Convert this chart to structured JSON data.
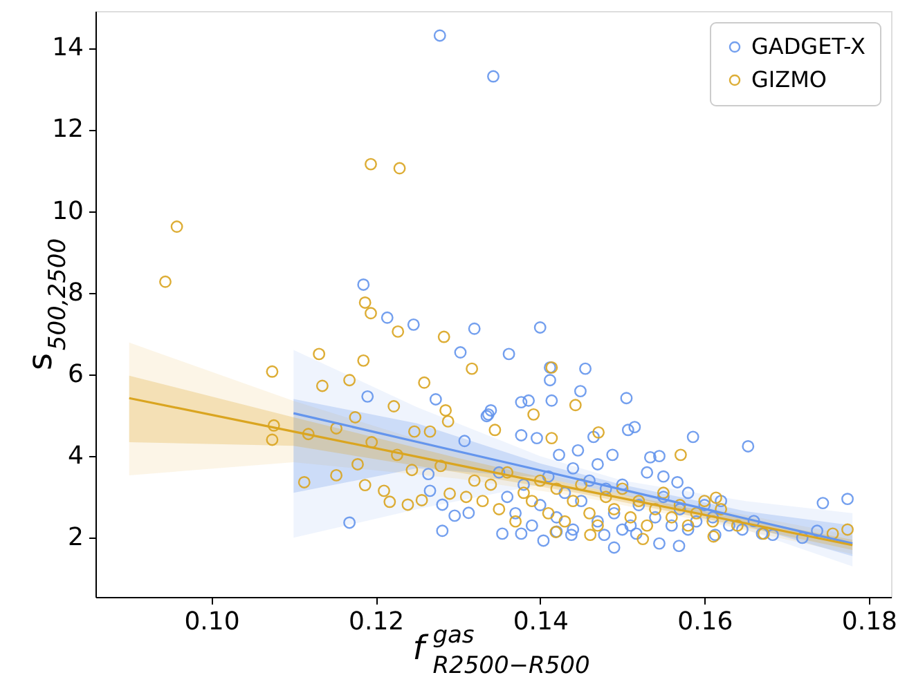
{
  "chart_data": {
    "type": "scatter",
    "xlabel": "f$^{gas}$$_{R2500−R500}$",
    "ylabel": "s$_{500,2500}$",
    "xlim": [
      0.0859,
      0.1827
    ],
    "ylim": [
      0.55,
      14.9
    ],
    "xticks": [
      {
        "value": 0.1,
        "label": "0.10"
      },
      {
        "value": 0.12,
        "label": "0.12"
      },
      {
        "value": 0.14,
        "label": "0.14"
      },
      {
        "value": 0.16,
        "label": "0.16"
      },
      {
        "value": 0.18,
        "label": "0.18"
      }
    ],
    "yticks": [
      2,
      4,
      6,
      8,
      10,
      12,
      14
    ],
    "grid": false,
    "legend": "top right",
    "marker": "circle",
    "series": [
      {
        "type": "line",
        "marker": "none",
        "color": "#a9c1f3",
        "x": [
          0.11,
          0.125,
          0.14,
          0.15,
          0.165,
          0.178
        ],
        "values": [
          null,
          null,
          null,
          null,
          null,
          null
        ],
        "lower": [
          2.0,
          2.7,
          3.3,
          2.95,
          2.2,
          1.3
        ],
        "upper": [
          6.6,
          5.2,
          4.0,
          3.4,
          2.9,
          2.6
        ]
      },
      {
        "type": "line",
        "marker": "none",
        "color": "#ecc97c",
        "x": [
          0.09,
          0.11,
          0.13,
          0.145,
          0.16,
          0.178
        ],
        "values": [
          null,
          null,
          null,
          null,
          null,
          null
        ],
        "lower": [
          3.53,
          3.85,
          3.45,
          3.0,
          2.4,
          1.6
        ],
        "upper": [
          6.78,
          5.35,
          4.1,
          3.35,
          2.75,
          2.05
        ]
      },
      {
        "type": "scatter",
        "name": "GADGET-X",
        "color": "#6495ed",
        "x": [
          0.1278,
          0.1343,
          0.1185,
          0.1214,
          0.1246,
          0.132,
          0.14,
          0.1303,
          0.1362,
          0.1412,
          0.1412,
          0.1455,
          0.1449,
          0.1505,
          0.1377,
          0.1386,
          0.1414,
          0.1337,
          0.1507,
          0.1515,
          0.1586,
          0.1653,
          0.1744,
          0.1774,
          0.1377,
          0.1396,
          0.1465,
          0.1423,
          0.1446,
          0.1488,
          0.1534,
          0.1545,
          0.1567,
          0.149,
          0.1545,
          0.1569,
          0.1404,
          0.1646,
          0.167,
          0.1683,
          0.1719,
          0.1737,
          0.166,
          0.1354,
          0.1377,
          0.1438,
          0.1478,
          0.1517,
          0.1613,
          0.119,
          0.1273,
          0.1264,
          0.1266,
          0.1281,
          0.1296,
          0.1313,
          0.1281,
          0.1168,
          0.1308,
          0.134,
          0.1335,
          0.136,
          0.137,
          0.138,
          0.139,
          0.14,
          0.141,
          0.142,
          0.143,
          0.144,
          0.145,
          0.146,
          0.147,
          0.148,
          0.149,
          0.15,
          0.151,
          0.152,
          0.153,
          0.154,
          0.155,
          0.156,
          0.157,
          0.158,
          0.159,
          0.16,
          0.161,
          0.162,
          0.163,
          0.135,
          0.144,
          0.15,
          0.147,
          0.155,
          0.142,
          0.158
        ],
        "values": [
          14.3,
          13.3,
          8.2,
          7.39,
          7.22,
          7.12,
          7.15,
          6.54,
          6.5,
          5.86,
          6.17,
          6.14,
          5.59,
          5.42,
          5.32,
          5.36,
          5.36,
          5.02,
          4.64,
          4.71,
          4.47,
          4.24,
          2.85,
          2.95,
          4.51,
          4.44,
          4.47,
          4.03,
          4.14,
          4.03,
          3.97,
          4.0,
          3.36,
          1.76,
          1.86,
          1.8,
          1.93,
          2.2,
          2.1,
          2.07,
          2.0,
          2.17,
          2.41,
          2.1,
          2.1,
          2.07,
          2.07,
          2.1,
          2.07,
          5.46,
          5.39,
          3.56,
          3.15,
          2.81,
          2.54,
          2.61,
          2.17,
          2.37,
          4.37,
          5.12,
          4.98,
          3.0,
          2.6,
          3.3,
          2.3,
          2.8,
          3.5,
          2.5,
          3.1,
          2.2,
          2.9,
          3.4,
          2.4,
          3.2,
          2.6,
          3.3,
          2.3,
          2.8,
          3.6,
          2.5,
          3.0,
          2.3,
          2.7,
          3.1,
          2.4,
          2.8,
          2.5,
          2.9,
          2.3,
          3.6,
          3.7,
          2.2,
          3.8,
          3.5,
          2.15,
          2.2
        ]
      },
      {
        "type": "scatter",
        "name": "GIZMO",
        "color": "#daa520",
        "x": [
          0.1194,
          0.1229,
          0.0958,
          0.0944,
          0.1187,
          0.1194,
          0.1227,
          0.1283,
          0.1317,
          0.1074,
          0.1131,
          0.1185,
          0.1076,
          0.1074,
          0.1113,
          0.1152,
          0.1152,
          0.1168,
          0.1135,
          0.1175,
          0.1118,
          0.1187,
          0.1178,
          0.1195,
          0.1222,
          0.1259,
          0.1247,
          0.1226,
          0.121,
          0.1217,
          0.1239,
          0.1256,
          0.1244,
          0.1266,
          0.1285,
          0.1288,
          0.1279,
          0.129,
          0.1414,
          0.1443,
          0.1392,
          0.1345,
          0.1471,
          0.1414,
          0.1571,
          0.1614,
          0.1774,
          0.1756,
          0.1672,
          0.1611,
          0.1461,
          0.1525,
          0.1419,
          0.134,
          0.135,
          0.136,
          0.137,
          0.138,
          0.139,
          0.14,
          0.141,
          0.142,
          0.143,
          0.144,
          0.145,
          0.146,
          0.147,
          0.148,
          0.149,
          0.15,
          0.151,
          0.152,
          0.153,
          0.154,
          0.155,
          0.156,
          0.157,
          0.158,
          0.159,
          0.16,
          0.161,
          0.162,
          0.164,
          0.133,
          0.132,
          0.131
        ],
        "values": [
          11.15,
          11.05,
          9.62,
          8.27,
          7.76,
          7.5,
          7.05,
          6.92,
          6.14,
          6.07,
          6.5,
          6.34,
          4.75,
          4.4,
          3.36,
          3.53,
          4.68,
          5.86,
          5.72,
          4.95,
          4.54,
          3.29,
          3.8,
          4.34,
          5.22,
          5.8,
          4.6,
          4.03,
          3.15,
          2.88,
          2.81,
          2.92,
          3.66,
          4.6,
          5.12,
          4.85,
          3.76,
          3.08,
          6.17,
          5.25,
          5.02,
          4.64,
          4.58,
          4.44,
          4.03,
          2.98,
          2.2,
          2.1,
          2.1,
          2.03,
          2.07,
          1.97,
          2.14,
          3.3,
          2.7,
          3.6,
          2.4,
          3.1,
          2.9,
          3.4,
          2.6,
          3.2,
          2.4,
          2.9,
          3.3,
          2.6,
          2.3,
          3.0,
          2.7,
          3.2,
          2.5,
          2.9,
          2.3,
          2.7,
          3.1,
          2.5,
          2.8,
          2.3,
          2.6,
          2.9,
          2.4,
          2.7,
          2.3,
          2.9,
          3.4,
          3.0
        ]
      },
      {
        "type": "line",
        "marker": "none",
        "color": "#6495ed",
        "x": [
          0.11,
          0.125,
          0.14,
          0.15,
          0.165,
          0.178
        ],
        "values": [
          5.05,
          4.35,
          3.65,
          3.18,
          2.47,
          1.86
        ],
        "lower": [
          3.1,
          3.7,
          3.48,
          3.06,
          2.3,
          1.55
        ],
        "upper": [
          5.4,
          4.8,
          3.82,
          3.3,
          2.65,
          2.3
        ]
      },
      {
        "type": "line",
        "marker": "none",
        "color": "#daa520",
        "x": [
          0.09,
          0.11,
          0.13,
          0.145,
          0.16,
          0.178
        ],
        "values": [
          5.42,
          4.6,
          3.78,
          3.17,
          2.56,
          1.82
        ],
        "lower": [
          4.34,
          4.25,
          3.6,
          3.08,
          2.47,
          1.7
        ],
        "upper": [
          5.97,
          4.95,
          3.95,
          3.26,
          2.65,
          1.95
        ]
      }
    ]
  }
}
